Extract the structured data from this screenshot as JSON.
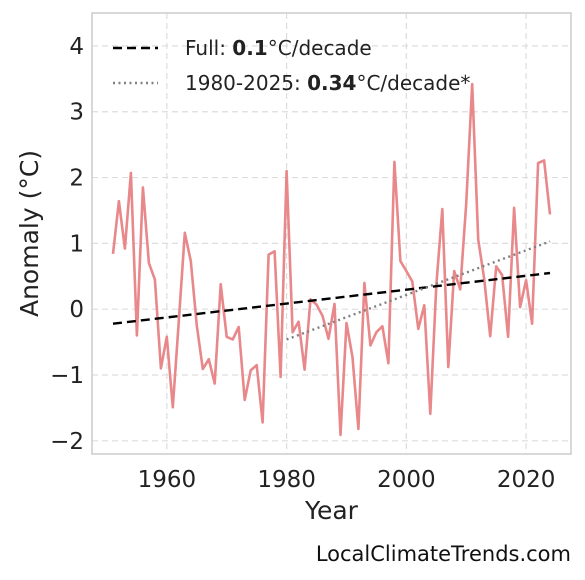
{
  "chart_data": {
    "type": "line",
    "xlabel": "Year",
    "ylabel": "Anomaly (°C)",
    "xlim": [
      1947.5,
      2027.5
    ],
    "ylim": [
      -2.2,
      4.5
    ],
    "x_ticks": [
      1960,
      1980,
      2000,
      2020
    ],
    "x_tick_labels": [
      "1960",
      "1980",
      "2000",
      "2020"
    ],
    "y_ticks": [
      -2,
      -1,
      0,
      1,
      2,
      3,
      4
    ],
    "y_tick_labels": [
      "−2",
      "−1",
      "0",
      "1",
      "2",
      "3",
      "4"
    ],
    "grid": true,
    "legend_position": "top-left",
    "colors": {
      "anomaly": "#e8888a",
      "full_trend": "#000000",
      "recent_trend": "#808080",
      "grid": "#dddddd",
      "frame": "#cccccc"
    },
    "series": [
      {
        "key": "anomaly",
        "x": [
          1951,
          1952,
          1953,
          1954,
          1955,
          1956,
          1957,
          1958,
          1959,
          1960,
          1961,
          1962,
          1963,
          1964,
          1965,
          1966,
          1967,
          1968,
          1969,
          1970,
          1971,
          1972,
          1973,
          1974,
          1975,
          1976,
          1977,
          1978,
          1979,
          1980,
          1981,
          1982,
          1983,
          1984,
          1985,
          1986,
          1987,
          1988,
          1989,
          1990,
          1991,
          1992,
          1993,
          1994,
          1995,
          1996,
          1997,
          1998,
          1999,
          2000,
          2001,
          2002,
          2003,
          2004,
          2005,
          2006,
          2007,
          2008,
          2009,
          2010,
          2011,
          2012,
          2013,
          2014,
          2015,
          2016,
          2017,
          2018,
          2019,
          2020,
          2021,
          2022,
          2023,
          2024
        ],
        "values": [
          0.84,
          1.64,
          0.92,
          2.07,
          -0.4,
          1.85,
          0.7,
          0.45,
          -0.9,
          -0.42,
          -1.49,
          -0.18,
          1.16,
          0.73,
          -0.25,
          -0.91,
          -0.76,
          -1.13,
          0.38,
          -0.42,
          -0.46,
          -0.27,
          -1.38,
          -0.93,
          -0.85,
          -1.72,
          0.83,
          0.88,
          -1.03,
          2.1,
          -0.35,
          -0.19,
          -0.92,
          0.15,
          0.07,
          -0.1,
          -0.45,
          0.08,
          -1.91,
          -0.21,
          -0.73,
          -1.82,
          0.4,
          -0.55,
          -0.35,
          -0.26,
          -0.82,
          2.24,
          0.73,
          0.58,
          0.42,
          -0.3,
          0.06,
          -1.59,
          0.36,
          1.52,
          -0.88,
          0.58,
          0.3,
          1.6,
          3.42,
          1.06,
          0.46,
          -0.41,
          0.65,
          0.52,
          -0.42,
          1.54,
          0.03,
          0.44,
          -0.22,
          2.22,
          2.26,
          1.44
        ]
      },
      {
        "key": "full_trend",
        "name": "Full: 0.1°C/decade",
        "x": [
          1951,
          2024
        ],
        "values": [
          -0.22,
          0.55
        ]
      },
      {
        "key": "recent_trend",
        "name": "1980-2025: 0.34°C/decade*",
        "x": [
          1980,
          2024
        ],
        "values": [
          -0.46,
          1.03
        ]
      }
    ],
    "legend": [
      {
        "prefix": "Full: ",
        "bold": "0.1",
        "suffix": "°C/decade"
      },
      {
        "prefix": "1980-2025: ",
        "bold": "0.34",
        "suffix": "°C/decade*"
      }
    ]
  },
  "credit": "LocalClimateTrends.com"
}
